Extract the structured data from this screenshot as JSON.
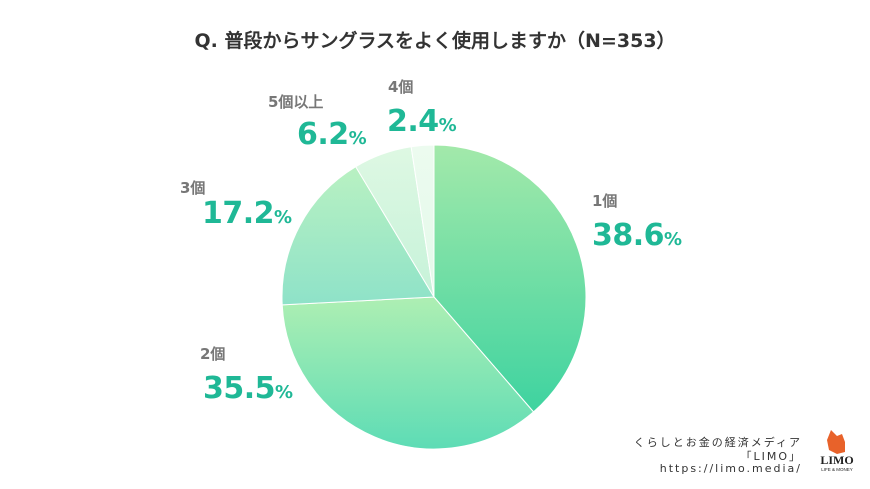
{
  "chart_data": {
    "type": "pie",
    "title": "Q. 普段からサングラスをよく使用しますか（N=353）",
    "start_angle": "12 o'clock",
    "direction": "clockwise",
    "slices": [
      {
        "label": "1個",
        "value": 38.6,
        "colors": [
          "#a3e9aa",
          "#3ed3a0"
        ]
      },
      {
        "label": "2個",
        "value": 35.5,
        "colors": [
          "#aeefb3",
          "#5ddcb5"
        ]
      },
      {
        "label": "3個",
        "value": 17.2,
        "colors": [
          "#b9f1c2",
          "#8ee2c8"
        ]
      },
      {
        "label": "5個以上",
        "value": 6.2,
        "colors": [
          "#def8e3",
          "#c6f2d9"
        ]
      },
      {
        "label": "4個",
        "value": 2.4,
        "colors": [
          "#ecfbef",
          "#e4f9ea"
        ]
      }
    ],
    "value_suffix": "%"
  },
  "credit": {
    "line1": "くらしとお金の経済メディア",
    "line2": "「LIMO」",
    "url": "https://limo.media/"
  },
  "logo": {
    "text": "LIMO",
    "tagline": "LIFE & MONEY",
    "color": "#e8622a"
  }
}
